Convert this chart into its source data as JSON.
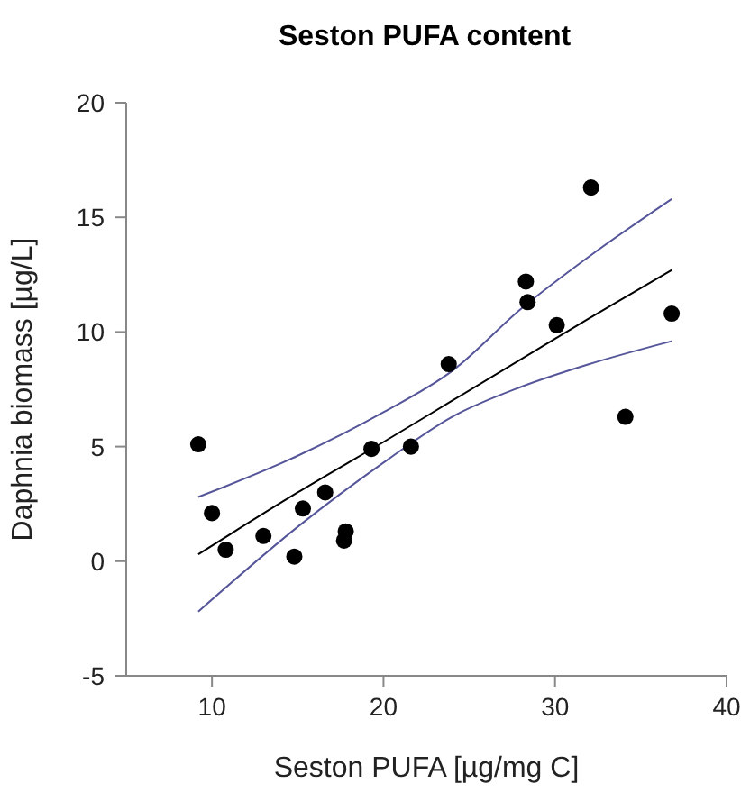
{
  "chart_data": {
    "type": "scatter",
    "title": "Seston PUFA content",
    "xlabel": "Seston PUFA [µg/mg C]",
    "ylabel": "Daphnia biomass [µg/L]",
    "xlim": [
      5,
      40
    ],
    "xticks": [
      10,
      20,
      30,
      40
    ],
    "ylim": [
      -5,
      20
    ],
    "yticks": [
      -5,
      0,
      5,
      10,
      15,
      20
    ],
    "grid": false,
    "legend": false,
    "series": [
      {
        "type": "line",
        "color": "#000000",
        "line_style": "solid",
        "marker": "none",
        "x": [
          9.2,
          15,
          20,
          24,
          28,
          32,
          36.8
        ],
        "values": [
          0.3,
          3.0,
          5.2,
          7.0,
          8.8,
          10.6,
          12.7
        ]
      },
      {
        "type": "line",
        "color": "#55559a",
        "line_style": "solid",
        "marker": "none",
        "x": [
          9.2,
          15,
          20,
          24,
          28,
          32,
          36.8
        ],
        "values": [
          2.8,
          4.6,
          6.5,
          8.3,
          11.0,
          13.3,
          15.8
        ]
      },
      {
        "type": "line",
        "color": "#55559a",
        "line_style": "solid",
        "marker": "none",
        "x": [
          9.2,
          15,
          20,
          24,
          28,
          32,
          36.8
        ],
        "values": [
          -2.2,
          1.5,
          4.3,
          6.3,
          7.6,
          8.6,
          9.6
        ]
      },
      {
        "color": "#000000",
        "marker": "circle",
        "x": [
          9.2,
          10,
          10.8,
          13,
          14.8,
          15.3,
          16.6,
          17.7,
          17.8,
          19.3,
          21.6,
          23.8,
          28.3,
          28.4,
          30.1,
          32.1,
          34.1,
          36.8
        ],
        "values": [
          5.1,
          2.1,
          0.5,
          1.1,
          0.2,
          2.3,
          3.0,
          0.9,
          1.3,
          4.9,
          5.0,
          8.6,
          12.2,
          11.3,
          10.3,
          16.3,
          6.3,
          10.8
        ]
      }
    ]
  }
}
